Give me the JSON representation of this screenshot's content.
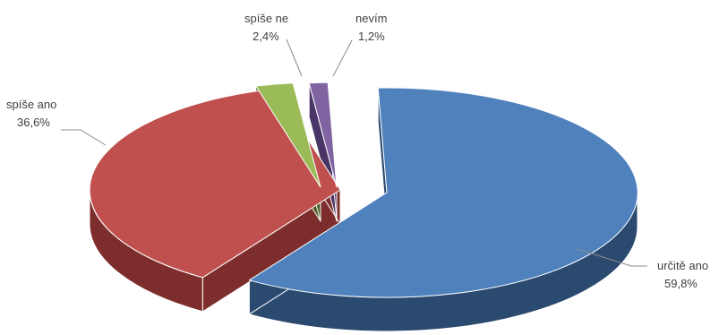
{
  "chart_data": {
    "type": "pie",
    "title": "",
    "legend": "none",
    "exploded": true,
    "style": "3d",
    "slices": [
      {
        "label": "určitě ano",
        "value": 59.8,
        "value_label": "59,8%",
        "color": "#4f81bd",
        "side_color": "#2b4a70"
      },
      {
        "label": "spíše ano",
        "value": 36.6,
        "value_label": "36,6%",
        "color": "#c0504d",
        "side_color": "#7d2e2c"
      },
      {
        "label": "spíše ne",
        "value": 2.4,
        "value_label": "2,4%",
        "color": "#9bbb59",
        "side_color": "#4b5e27"
      },
      {
        "label": "nevím",
        "value": 1.2,
        "value_label": "1,2%",
        "color": "#8064a2",
        "side_color": "#4a3666"
      }
    ]
  }
}
